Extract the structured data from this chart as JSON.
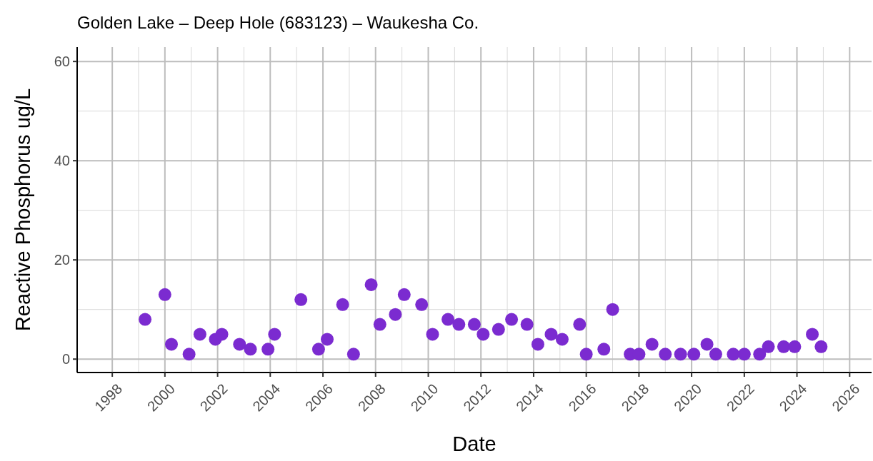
{
  "chart_data": {
    "type": "scatter",
    "title": "Golden Lake – Deep Hole (683123) – Waukesha Co.",
    "xlabel": "Date",
    "ylabel": "Reactive Phosphorus ug/L",
    "x": [
      "1999-04",
      "2000-01",
      "2000-04",
      "2000-12",
      "2001-05",
      "2001-12",
      "2002-03",
      "2002-11",
      "2003-04",
      "2003-12",
      "2004-03",
      "2005-03",
      "2005-11",
      "2006-03",
      "2006-10",
      "2007-03",
      "2007-11",
      "2008-03",
      "2008-10",
      "2009-02",
      "2009-10",
      "2010-03",
      "2010-10",
      "2011-03",
      "2011-10",
      "2012-02",
      "2012-09",
      "2013-03",
      "2013-10",
      "2014-03",
      "2014-09",
      "2015-02",
      "2015-10",
      "2016-01",
      "2016-09",
      "2017-01",
      "2017-09",
      "2018-01",
      "2018-07",
      "2019-01",
      "2019-08",
      "2020-02",
      "2020-08",
      "2020-12",
      "2021-08",
      "2022-01",
      "2022-08",
      "2022-12",
      "2023-07",
      "2023-12",
      "2024-08",
      "2024-12"
    ],
    "series": [
      {
        "color": "#7b2bd0",
        "values": [
          8,
          13,
          3,
          1,
          5,
          4,
          5,
          3,
          2,
          2,
          5,
          12,
          2,
          4,
          11,
          1,
          15,
          7,
          9,
          13,
          11,
          5,
          8,
          7,
          7,
          5,
          6,
          8,
          7,
          3,
          5,
          4,
          7,
          1,
          2,
          10,
          1,
          1,
          3,
          1,
          1,
          1,
          3,
          1,
          1,
          1,
          1,
          2.5,
          2.5,
          2.5,
          5,
          2.5
        ]
      }
    ],
    "xlim": [
      "1996-09",
      "2026-11"
    ],
    "xticks": [
      "1998",
      "2000",
      "2002",
      "2004",
      "2006",
      "2008",
      "2010",
      "2012",
      "2014",
      "2016",
      "2018",
      "2020",
      "2022",
      "2024",
      "2026"
    ],
    "ylim": [
      -2.7,
      62.9
    ],
    "yticks": [
      0,
      20,
      40,
      60
    ],
    "grid": true,
    "marker": "circle"
  }
}
